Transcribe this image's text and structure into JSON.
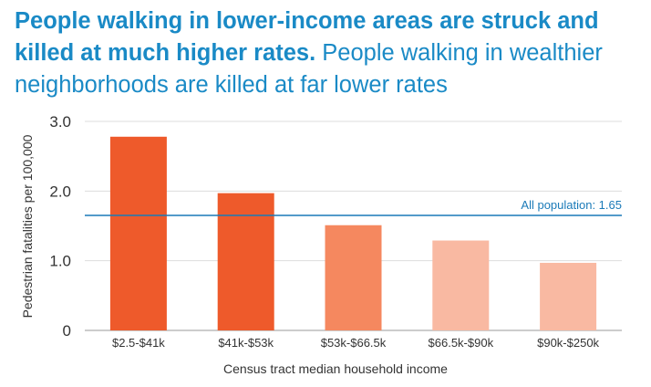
{
  "title": {
    "lead": "People walking in lower-income areas are struck and killed at much higher rates.",
    "rest": "People walking in wealthier neighborhoods are killed at far lower rates"
  },
  "chart_data": {
    "type": "bar",
    "categories": [
      "$2.5-$41k",
      "$41k-$53k",
      "$53k-$66.5k",
      "$66.5k-$90k",
      "$90k-$250k"
    ],
    "values": [
      2.78,
      1.97,
      1.51,
      1.29,
      0.97
    ],
    "colors": [
      "#ee5a2b",
      "#ee5a2b",
      "#f5885f",
      "#f9b9a2",
      "#f9b9a2"
    ],
    "ylabel": "Pedestrian fatalities per 100,000",
    "xlabel": "Census tract median household income",
    "ylim": [
      0,
      3
    ],
    "yticks": [
      0,
      1,
      2,
      3
    ],
    "ytick_labels": [
      "0",
      "1.0",
      "2.0",
      "3.0"
    ],
    "grid": true,
    "reference_line": {
      "value": 1.65,
      "label": "All population: 1.65",
      "color": "#1a7ab8"
    }
  }
}
